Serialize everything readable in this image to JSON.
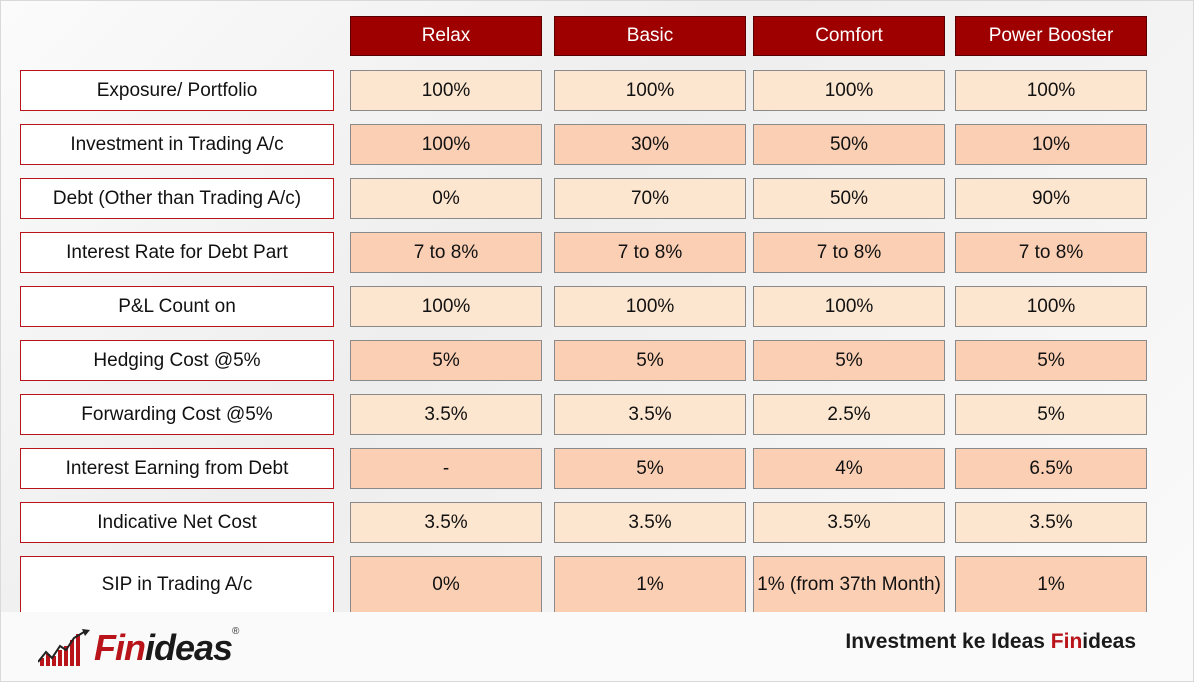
{
  "columns": [
    "Relax",
    "Basic",
    "Comfort",
    "Power Booster"
  ],
  "rows": [
    {
      "label": "Exposure/ Portfolio",
      "values": [
        "100%",
        "100%",
        "100%",
        "100%"
      ]
    },
    {
      "label": "Investment in Trading A/c",
      "values": [
        "100%",
        "30%",
        "50%",
        "10%"
      ]
    },
    {
      "label": "Debt (Other than Trading A/c)",
      "values": [
        "0%",
        "70%",
        "50%",
        "90%"
      ]
    },
    {
      "label": "Interest Rate for Debt Part",
      "values": [
        "7 to 8%",
        "7 to 8%",
        "7 to 8%",
        "7 to 8%"
      ]
    },
    {
      "label": "P&L Count on",
      "values": [
        "100%",
        "100%",
        "100%",
        "100%"
      ]
    },
    {
      "label": "Hedging Cost @5%",
      "values": [
        "5%",
        "5%",
        "5%",
        "5%"
      ]
    },
    {
      "label": "Forwarding Cost @5%",
      "values": [
        "3.5%",
        "3.5%",
        "2.5%",
        "5%"
      ]
    },
    {
      "label": "Interest Earning from Debt",
      "values": [
        "-",
        "5%",
        "4%",
        "6.5%"
      ]
    },
    {
      "label": "Indicative Net Cost",
      "values": [
        "3.5%",
        "3.5%",
        "3.5%",
        "3.5%"
      ]
    },
    {
      "label": "SIP in Trading A/c",
      "values": [
        "0%",
        "1%",
        "1%  (from 37th Month)",
        "1%"
      ]
    }
  ],
  "logo": {
    "fin": "Fin",
    "ideas": "ideas",
    "reg": "®"
  },
  "tagline": {
    "prefix": "Investment ke Ideas ",
    "fin": "Fin",
    "ideas": "ideas"
  },
  "colors": {
    "header": "#9e0000",
    "label_border": "#b8141a",
    "cell_light": "#fde6cf",
    "cell_dark": "#fbcfb4"
  }
}
